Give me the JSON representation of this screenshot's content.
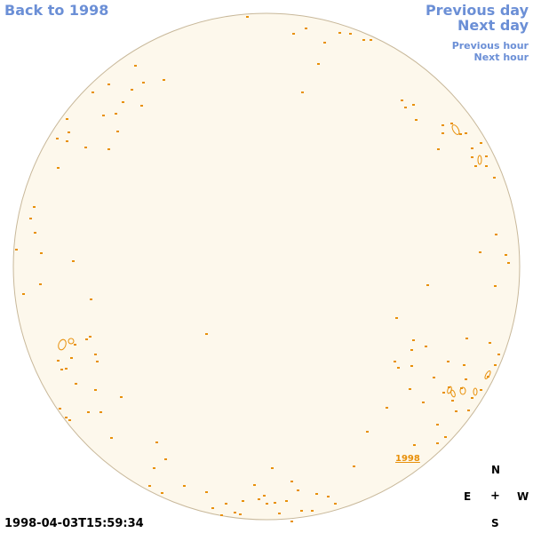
{
  "nav": {
    "back_label": "Back to 1998",
    "prev_day_label": "Previous day",
    "next_day_label": "Next day",
    "prev_hour_label": "Previous hour",
    "next_hour_label": "Next hour"
  },
  "timestamp": "1998-04-03T15:59:34",
  "compass": {
    "north": "N",
    "east": "E",
    "center": "+",
    "west": "W",
    "south": "S"
  },
  "map": {
    "year_label": "1998",
    "disk_color": "#fdf8ec",
    "disk_stroke_color": "#c8b89a",
    "contour_color": "#e8900a"
  },
  "nav_color": "#6b8fd6"
}
